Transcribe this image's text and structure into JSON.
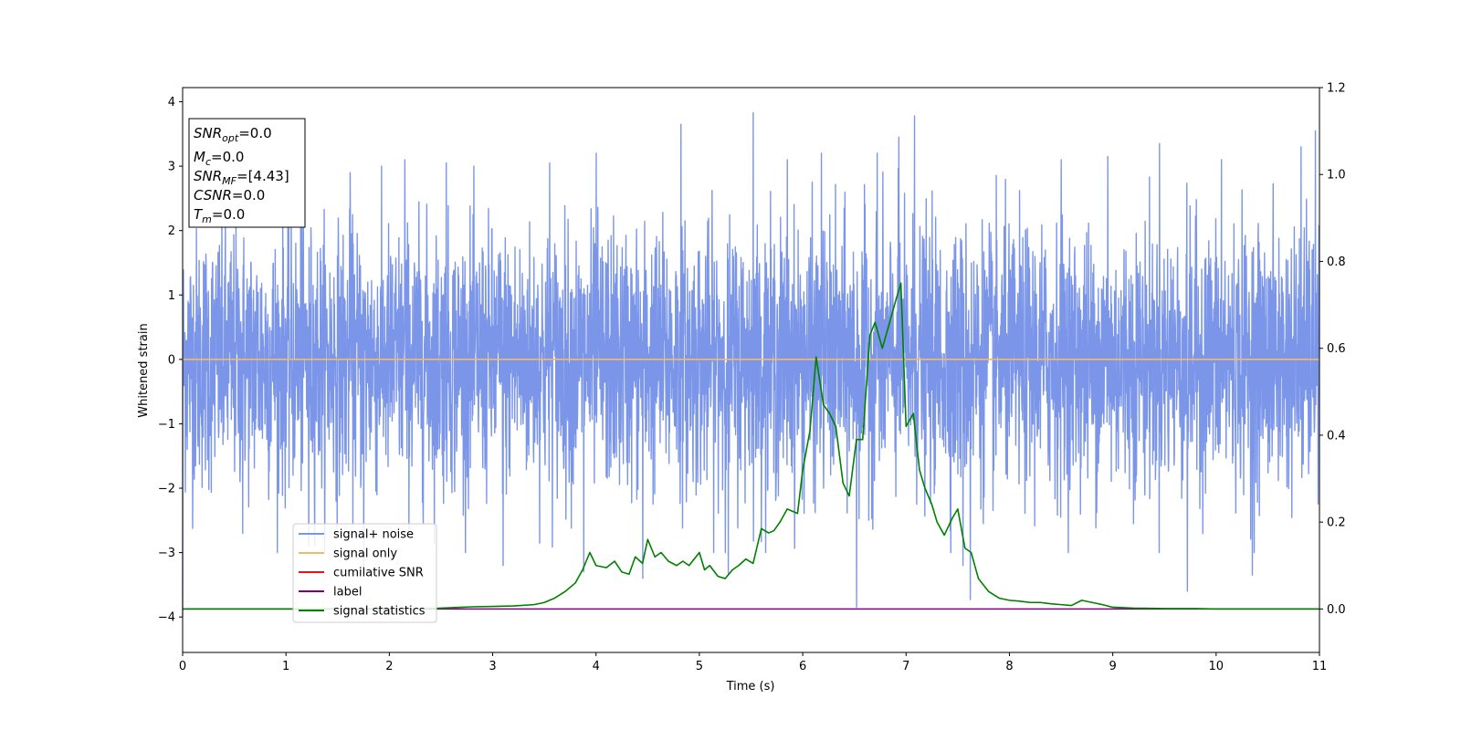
{
  "chart_data": {
    "type": "line",
    "xlabel": "Time (s)",
    "ylabel": "Whitened strain",
    "xlim": [
      0,
      11
    ],
    "ylim": [
      -4.55,
      4.22
    ],
    "y2lim": [
      -0.1,
      1.2
    ],
    "x_ticks": [
      "0",
      "1",
      "2",
      "3",
      "4",
      "5",
      "6",
      "7",
      "8",
      "9",
      "10",
      "11"
    ],
    "y_ticks": [
      "−4",
      "−3",
      "−2",
      "−1",
      "0",
      "1",
      "2",
      "3",
      "4"
    ],
    "y2_ticks": [
      "0.0",
      "0.2",
      "0.4",
      "0.6",
      "0.8",
      "1.0",
      "1.2"
    ],
    "grid": false,
    "legend_position": "lower-left",
    "annotation": {
      "lines": [
        {
          "sym": "SNR",
          "sub": "opt",
          "val": "=0.0"
        },
        {
          "sym": "M",
          "sub": "c",
          "val": "=0.0"
        },
        {
          "sym": "SNR",
          "sub": "MF",
          "val": "=[4.43]"
        },
        {
          "sym": "CSNR",
          "sub": "",
          "val": "=0.0"
        },
        {
          "sym": "T",
          "sub": "m",
          "val": "=0.0"
        }
      ]
    },
    "series": [
      {
        "name": "signal+ noise",
        "color": "#7b96e8",
        "axis": "left",
        "kind": "noise",
        "noise_sigma": 1.0,
        "peaks_x": [
          0.0,
          0.58,
          1.15,
          1.22,
          1.62,
          1.75,
          2.15,
          2.55,
          3.1,
          3.55,
          3.88,
          4.0,
          4.45,
          4.82,
          5.28,
          5.52,
          5.85,
          6.18,
          6.52,
          6.72,
          6.93,
          7.08,
          7.55,
          7.62,
          8.5,
          8.95,
          9.45,
          9.72,
          10.05,
          10.35,
          10.82,
          10.96
        ],
        "peaks_y": [
          -4.0,
          -2.7,
          3.0,
          -2.9,
          2.9,
          -3.2,
          3.1,
          3.05,
          -3.2,
          3.05,
          -3.3,
          3.2,
          -3.4,
          3.65,
          -3.35,
          3.83,
          3.1,
          3.2,
          -3.85,
          3.2,
          3.45,
          3.78,
          -3.2,
          -3.73,
          3.1,
          3.15,
          3.35,
          -3.6,
          3.1,
          -3.35,
          3.3,
          3.55
        ]
      },
      {
        "name": "signal only",
        "color": "#f5b86a",
        "axis": "left",
        "x": [
          0,
          11
        ],
        "y": [
          0,
          0
        ]
      },
      {
        "name": "cumilative SNR",
        "color": "#ee1111",
        "axis": "right",
        "x": [],
        "y": []
      },
      {
        "name": "label",
        "color": "#800080",
        "axis": "right",
        "x": [
          0,
          11
        ],
        "y": [
          0,
          0
        ]
      },
      {
        "name": "signal statistics",
        "color": "#008000",
        "axis": "right",
        "x": [
          0,
          0.5,
          1.0,
          1.5,
          2.0,
          2.3,
          2.5,
          2.8,
          3.0,
          3.2,
          3.4,
          3.5,
          3.6,
          3.7,
          3.8,
          3.87,
          3.94,
          4.0,
          4.1,
          4.18,
          4.25,
          4.32,
          4.38,
          4.45,
          4.5,
          4.57,
          4.63,
          4.7,
          4.78,
          4.84,
          4.9,
          5.0,
          5.05,
          5.1,
          5.18,
          5.25,
          5.32,
          5.38,
          5.45,
          5.52,
          5.6,
          5.67,
          5.72,
          5.78,
          5.85,
          5.95,
          6.0,
          6.07,
          6.13,
          6.2,
          6.26,
          6.32,
          6.39,
          6.45,
          6.52,
          6.58,
          6.65,
          6.7,
          6.77,
          6.83,
          6.9,
          6.95,
          7.0,
          7.07,
          7.13,
          7.18,
          7.25,
          7.3,
          7.37,
          7.45,
          7.5,
          7.57,
          7.63,
          7.7,
          7.8,
          7.9,
          8.0,
          8.1,
          8.2,
          8.3,
          8.4,
          8.5,
          8.6,
          8.7,
          8.8,
          8.9,
          9.0,
          9.2,
          9.5,
          9.8,
          10.0,
          10.5,
          11.0
        ],
        "y": [
          0.0,
          0.0,
          0.0,
          0.0,
          0.0,
          0.0,
          0.002,
          0.005,
          0.006,
          0.007,
          0.01,
          0.015,
          0.025,
          0.04,
          0.06,
          0.09,
          0.13,
          0.1,
          0.095,
          0.11,
          0.085,
          0.08,
          0.12,
          0.105,
          0.16,
          0.12,
          0.13,
          0.11,
          0.1,
          0.11,
          0.1,
          0.13,
          0.09,
          0.1,
          0.075,
          0.07,
          0.09,
          0.1,
          0.115,
          0.105,
          0.185,
          0.175,
          0.18,
          0.2,
          0.23,
          0.22,
          0.32,
          0.41,
          0.58,
          0.47,
          0.45,
          0.42,
          0.29,
          0.26,
          0.39,
          0.39,
          0.63,
          0.66,
          0.6,
          0.65,
          0.71,
          0.75,
          0.42,
          0.45,
          0.32,
          0.28,
          0.24,
          0.2,
          0.17,
          0.21,
          0.23,
          0.14,
          0.13,
          0.07,
          0.04,
          0.025,
          0.02,
          0.018,
          0.015,
          0.015,
          0.012,
          0.01,
          0.008,
          0.02,
          0.015,
          0.01,
          0.004,
          0.002,
          0.001,
          0.001,
          0.0,
          0.0,
          0.0
        ]
      }
    ]
  }
}
